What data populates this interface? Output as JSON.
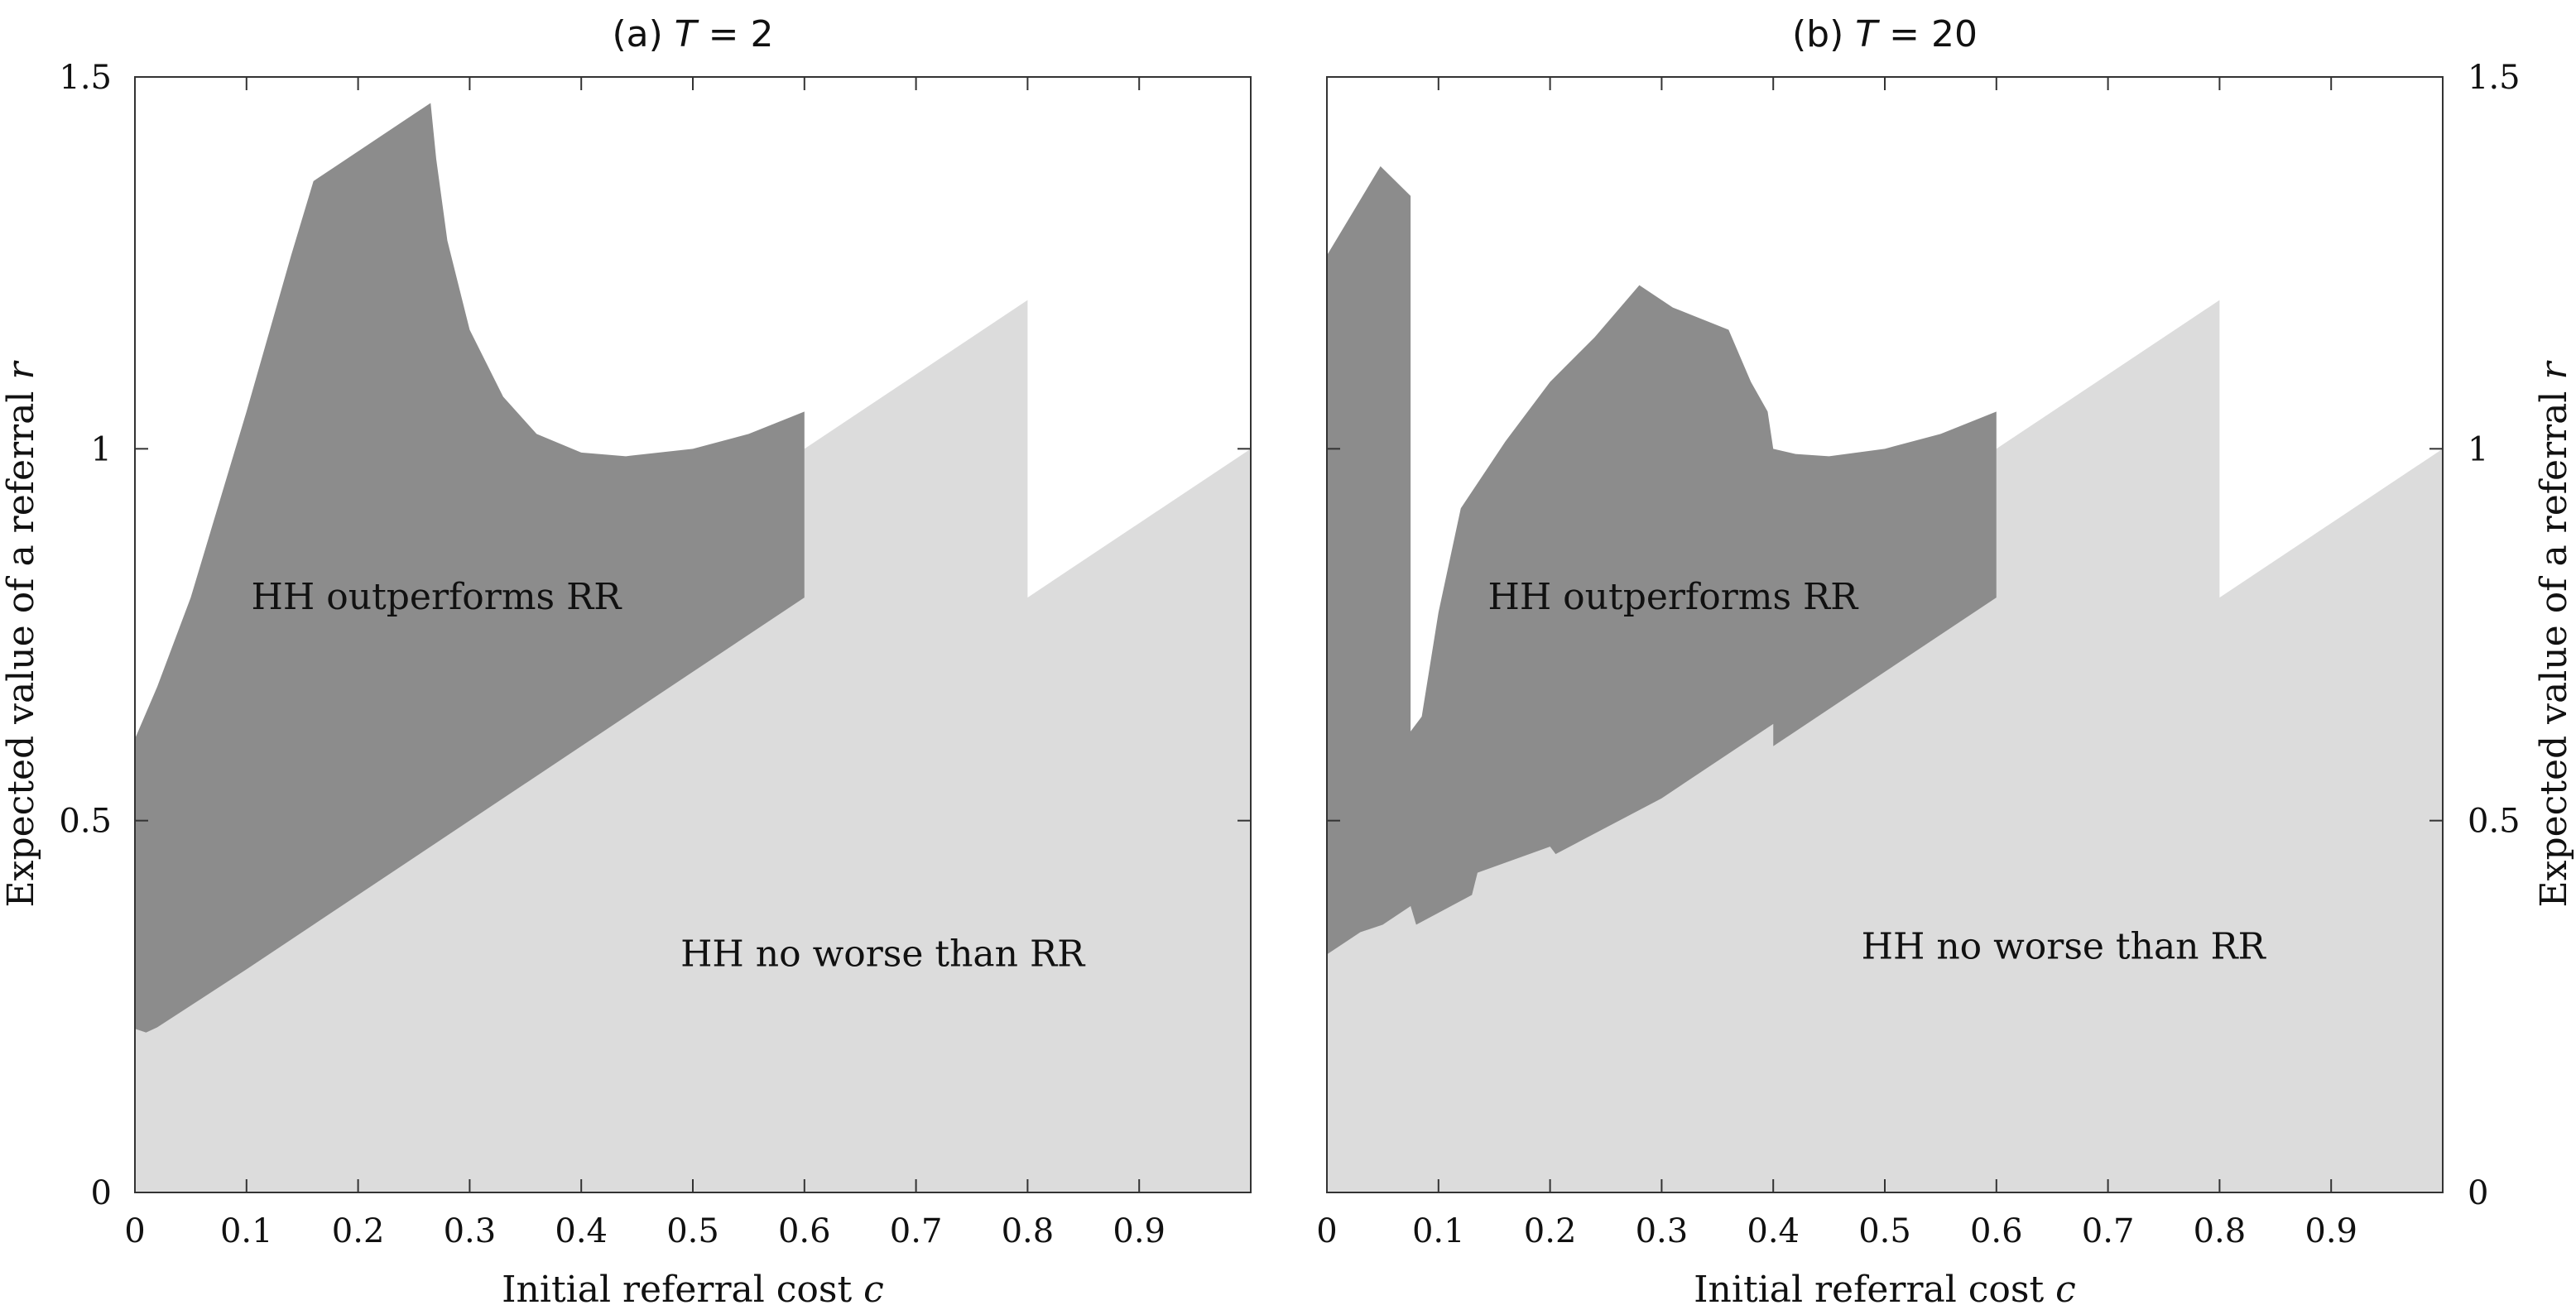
{
  "chart_data": [
    {
      "type": "area",
      "title_prefix": "(a)",
      "title_var": "T",
      "title_rest": " = 2",
      "xlabel_text": "Initial referral cost ",
      "xlabel_var": "c",
      "ylabel_text": "Expected value of a referral ",
      "ylabel_var": "r",
      "xlim": [
        0,
        1
      ],
      "ylim": [
        0,
        1.5
      ],
      "xticks": [
        "0",
        "0.1",
        "0.2",
        "0.3",
        "0.4",
        "0.5",
        "0.6",
        "0.7",
        "0.8",
        "0.9"
      ],
      "yticks": [
        "0",
        "0.5",
        "1",
        "1.5"
      ],
      "y_axis_side": "left",
      "colors": {
        "outperforms": "#8c8c8c",
        "no_worse": "#dcdcdc"
      },
      "series": [
        {
          "name": "HH no worse than RR",
          "boundary": [
            [
              0,
              0.22
            ],
            [
              0.01,
              0.215
            ],
            [
              0.02,
              0.222
            ],
            [
              0.1,
              0.3
            ],
            [
              0.2,
              0.4
            ],
            [
              0.3,
              0.5
            ],
            [
              0.4,
              0.6
            ],
            [
              0.5,
              0.7
            ],
            [
              0.6,
              0.8
            ],
            [
              0.6,
              1.0
            ],
            [
              0.7,
              1.1
            ],
            [
              0.8,
              1.2
            ],
            [
              0.8,
              0.8
            ],
            [
              0.9,
              0.9
            ],
            [
              1.0,
              1.0
            ]
          ]
        },
        {
          "name": "HH outperforms RR",
          "lower": [
            [
              0,
              0.22
            ],
            [
              0.01,
              0.215
            ],
            [
              0.02,
              0.222
            ],
            [
              0.1,
              0.3
            ],
            [
              0.2,
              0.4
            ],
            [
              0.3,
              0.5
            ],
            [
              0.4,
              0.6
            ],
            [
              0.5,
              0.7
            ],
            [
              0.6,
              0.8
            ]
          ],
          "upper": [
            [
              0,
              0.61
            ],
            [
              0.02,
              0.68
            ],
            [
              0.05,
              0.8
            ],
            [
              0.1,
              1.05
            ],
            [
              0.14,
              1.26
            ],
            [
              0.16,
              1.36
            ],
            [
              0.18,
              1.38
            ],
            [
              0.22,
              1.42
            ],
            [
              0.265,
              1.465
            ],
            [
              0.27,
              1.39
            ],
            [
              0.28,
              1.28
            ],
            [
              0.3,
              1.16
            ],
            [
              0.33,
              1.07
            ],
            [
              0.36,
              1.02
            ],
            [
              0.4,
              0.995
            ],
            [
              0.44,
              0.99
            ],
            [
              0.5,
              1.0
            ],
            [
              0.55,
              1.02
            ],
            [
              0.6,
              1.05
            ]
          ]
        }
      ],
      "annotations": [
        {
          "text": "HH outperforms RR",
          "x": 0.27,
          "y": 0.8
        },
        {
          "text": "HH no worse than RR",
          "x": 0.67,
          "y": 0.32
        }
      ]
    },
    {
      "type": "area",
      "title_prefix": "(b)",
      "title_var": "T",
      "title_rest": " = 20",
      "xlabel_text": "Initial referral cost ",
      "xlabel_var": "c",
      "ylabel_text": "Expected value of a referral ",
      "ylabel_var": "r",
      "xlim": [
        0,
        1
      ],
      "ylim": [
        0,
        1.5
      ],
      "xticks": [
        "0",
        "0.1",
        "0.2",
        "0.3",
        "0.4",
        "0.5",
        "0.6",
        "0.7",
        "0.8",
        "0.9"
      ],
      "yticks": [
        "0",
        "0.5",
        "1",
        "1.5"
      ],
      "y_axis_side": "right",
      "colors": {
        "outperforms": "#8c8c8c",
        "no_worse": "#dcdcdc"
      },
      "series": [
        {
          "name": "HH no worse than RR",
          "boundary": [
            [
              0,
              0.32
            ],
            [
              0.03,
              0.35
            ],
            [
              0.05,
              0.36
            ],
            [
              0.075,
              0.385
            ],
            [
              0.08,
              0.36
            ],
            [
              0.13,
              0.4
            ],
            [
              0.135,
              0.43
            ],
            [
              0.2,
              0.465
            ],
            [
              0.205,
              0.455
            ],
            [
              0.3,
              0.53
            ],
            [
              0.4,
              0.63
            ],
            [
              0.4,
              0.6
            ],
            [
              0.5,
              0.7
            ],
            [
              0.6,
              0.8
            ],
            [
              0.6,
              1.0
            ],
            [
              0.7,
              1.1
            ],
            [
              0.8,
              1.2
            ],
            [
              0.8,
              0.8
            ],
            [
              0.9,
              0.9
            ],
            [
              1.0,
              1.0
            ]
          ]
        },
        {
          "name": "HH outperforms RR",
          "lower": [
            [
              0,
              0.32
            ],
            [
              0.03,
              0.35
            ],
            [
              0.05,
              0.36
            ],
            [
              0.075,
              0.385
            ],
            [
              0.08,
              0.36
            ],
            [
              0.13,
              0.4
            ],
            [
              0.135,
              0.43
            ],
            [
              0.2,
              0.465
            ],
            [
              0.205,
              0.455
            ],
            [
              0.3,
              0.53
            ],
            [
              0.4,
              0.63
            ],
            [
              0.4,
              0.6
            ],
            [
              0.5,
              0.7
            ],
            [
              0.6,
              0.8
            ]
          ],
          "upper": [
            [
              0,
              1.26
            ],
            [
              0.048,
              1.38
            ],
            [
              0.075,
              1.34
            ],
            [
              0.075,
              0.62
            ],
            [
              0.085,
              0.64
            ],
            [
              0.1,
              0.78
            ],
            [
              0.12,
              0.92
            ],
            [
              0.16,
              1.01
            ],
            [
              0.2,
              1.09
            ],
            [
              0.24,
              1.15
            ],
            [
              0.28,
              1.22
            ],
            [
              0.31,
              1.19
            ],
            [
              0.36,
              1.16
            ],
            [
              0.38,
              1.09
            ],
            [
              0.395,
              1.05
            ],
            [
              0.4,
              1.0
            ],
            [
              0.42,
              0.993
            ],
            [
              0.45,
              0.99
            ],
            [
              0.5,
              1.0
            ],
            [
              0.55,
              1.02
            ],
            [
              0.6,
              1.05
            ]
          ]
        }
      ],
      "annotations": [
        {
          "text": "HH outperforms RR",
          "x": 0.31,
          "y": 0.8
        },
        {
          "text": "HH no worse than RR",
          "x": 0.66,
          "y": 0.33
        }
      ]
    }
  ]
}
